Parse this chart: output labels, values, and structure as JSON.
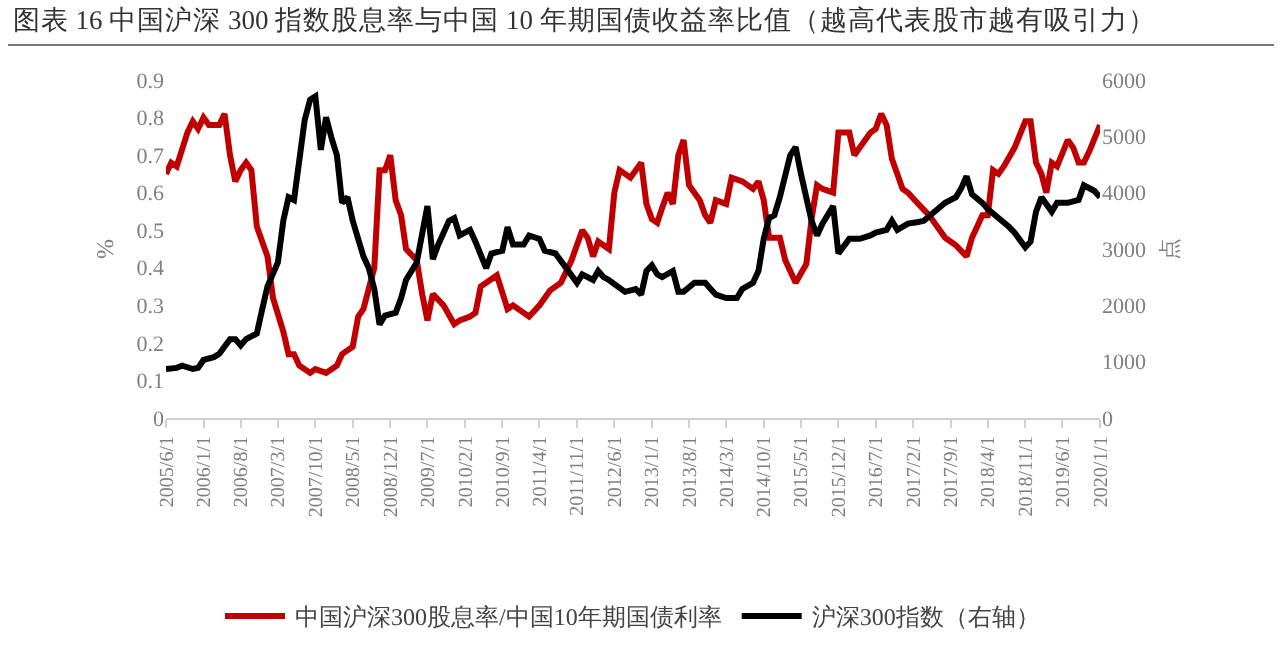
{
  "chart_data": {
    "type": "line",
    "title": "图表 16 中国沪深 300 指数股息率与中国 10 年期国债收益率比值（越高代表股市越有吸引力）",
    "ylabel": "%",
    "y2label": "点",
    "series": [
      {
        "name": "中国沪深300股息率/中国10年期国债利率",
        "color": "#c00000",
        "x": [
          "2005-06",
          "2005-07",
          "2005-08",
          "2005-10",
          "2005-11",
          "2005-12",
          "2006-01",
          "2006-02",
          "2006-04",
          "2006-05",
          "2006-06",
          "2006-07",
          "2006-08",
          "2006-09",
          "2006-10",
          "2006-11",
          "2007-01",
          "2007-02",
          "2007-04",
          "2007-05",
          "2007-06",
          "2007-07",
          "2007-09",
          "2007-10",
          "2007-12",
          "2008-02",
          "2008-03",
          "2008-05",
          "2008-06",
          "2008-07",
          "2008-09",
          "2008-10",
          "2008-11",
          "2008-12",
          "2009-01",
          "2009-02",
          "2009-03",
          "2009-05",
          "2009-06",
          "2009-07",
          "2009-08",
          "2009-10",
          "2009-12",
          "2010-01",
          "2010-03",
          "2010-04",
          "2010-05",
          "2010-08",
          "2010-10",
          "2010-11",
          "2011-02",
          "2011-04",
          "2011-06",
          "2011-08",
          "2011-10",
          "2011-12",
          "2012-01",
          "2012-02",
          "2012-03",
          "2012-05",
          "2012-06",
          "2012-07",
          "2012-09",
          "2012-11",
          "2012-12",
          "2013-01",
          "2013-02",
          "2013-03",
          "2013-04",
          "2013-05",
          "2013-06",
          "2013-07",
          "2013-08",
          "2013-10",
          "2013-11",
          "2013-12",
          "2014-01",
          "2014-03",
          "2014-04",
          "2014-06",
          "2014-08",
          "2014-09",
          "2014-10",
          "2014-11",
          "2015-01",
          "2015-02",
          "2015-04",
          "2015-06",
          "2015-07",
          "2015-08",
          "2015-09",
          "2015-11",
          "2015-12",
          "2016-02",
          "2016-03",
          "2016-04",
          "2016-06",
          "2016-07",
          "2016-08",
          "2016-09",
          "2016-10",
          "2016-12",
          "2017-01",
          "2017-03",
          "2017-05",
          "2017-06",
          "2017-08",
          "2017-10",
          "2017-12",
          "2018-01",
          "2018-03",
          "2018-04",
          "2018-05",
          "2018-06",
          "2018-07",
          "2018-09",
          "2018-11",
          "2018-12",
          "2019-01",
          "2019-02",
          "2019-03",
          "2019-04",
          "2019-05",
          "2019-07",
          "2019-08",
          "2019-09",
          "2019-10",
          "2019-11",
          "2020-01"
        ],
        "values": [
          0.65,
          0.68,
          0.67,
          0.76,
          0.79,
          0.77,
          0.8,
          0.78,
          0.78,
          0.81,
          0.7,
          0.63,
          0.66,
          0.68,
          0.66,
          0.51,
          0.43,
          0.32,
          0.23,
          0.17,
          0.17,
          0.14,
          0.12,
          0.13,
          0.12,
          0.14,
          0.17,
          0.19,
          0.27,
          0.29,
          0.4,
          0.66,
          0.66,
          0.7,
          0.58,
          0.54,
          0.45,
          0.42,
          0.33,
          0.26,
          0.33,
          0.3,
          0.25,
          0.26,
          0.27,
          0.28,
          0.35,
          0.38,
          0.29,
          0.3,
          0.27,
          0.3,
          0.34,
          0.36,
          0.42,
          0.5,
          0.48,
          0.43,
          0.47,
          0.45,
          0.6,
          0.66,
          0.64,
          0.68,
          0.57,
          0.53,
          0.52,
          0.56,
          0.6,
          0.57,
          0.7,
          0.74,
          0.62,
          0.58,
          0.54,
          0.52,
          0.58,
          0.57,
          0.64,
          0.63,
          0.61,
          0.63,
          0.58,
          0.48,
          0.48,
          0.42,
          0.36,
          0.41,
          0.53,
          0.62,
          0.61,
          0.6,
          0.76,
          0.76,
          0.7,
          0.72,
          0.76,
          0.77,
          0.81,
          0.78,
          0.69,
          0.61,
          0.6,
          0.57,
          0.54,
          0.52,
          0.48,
          0.46,
          0.43,
          0.48,
          0.54,
          0.54,
          0.66,
          0.65,
          0.67,
          0.72,
          0.79,
          0.79,
          0.68,
          0.65,
          0.6,
          0.68,
          0.67,
          0.74,
          0.72,
          0.68,
          0.68,
          0.71,
          0.78
        ]
      },
      {
        "name": "沪深300指数（右轴）",
        "color": "#000000",
        "axis": "y2",
        "x": [
          "2005-06",
          "2005-08",
          "2005-09",
          "2005-11",
          "2005-12",
          "2006-01",
          "2006-03",
          "2006-04",
          "2006-06",
          "2006-07",
          "2006-08",
          "2006-09",
          "2006-11",
          "2006-12",
          "2007-01",
          "2007-03",
          "2007-04",
          "2007-05",
          "2007-06",
          "2007-08",
          "2007-09",
          "2007-10",
          "2007-11",
          "2007-12",
          "2008-01",
          "2008-02",
          "2008-03",
          "2008-04",
          "2008-05",
          "2008-07",
          "2008-08",
          "2008-09",
          "2008-10",
          "2008-11",
          "2009-01",
          "2009-02",
          "2009-03",
          "2009-05",
          "2009-07",
          "2009-08",
          "2009-09",
          "2009-11",
          "2009-12",
          "2010-01",
          "2010-03",
          "2010-04",
          "2010-06",
          "2010-07",
          "2010-09",
          "2010-10",
          "2010-11",
          "2011-01",
          "2011-02",
          "2011-04",
          "2011-05",
          "2011-07",
          "2011-09",
          "2011-11",
          "2011-12",
          "2012-02",
          "2012-03",
          "2012-04",
          "2012-05",
          "2012-08",
          "2012-10",
          "2012-11",
          "2012-12",
          "2013-01",
          "2013-02",
          "2013-03",
          "2013-05",
          "2013-06",
          "2013-07",
          "2013-09",
          "2013-11",
          "2014-01",
          "2014-03",
          "2014-05",
          "2014-06",
          "2014-08",
          "2014-09",
          "2014-10",
          "2014-11",
          "2014-12",
          "2015-01",
          "2015-03",
          "2015-04",
          "2015-05",
          "2015-07",
          "2015-08",
          "2015-09",
          "2015-11",
          "2015-12",
          "2016-02",
          "2016-04",
          "2016-06",
          "2016-07",
          "2016-09",
          "2016-10",
          "2016-11",
          "2017-01",
          "2017-03",
          "2017-04",
          "2017-06",
          "2017-08",
          "2017-10",
          "2017-11",
          "2017-12",
          "2018-01",
          "2018-03",
          "2018-04",
          "2018-06",
          "2018-08",
          "2018-09",
          "2018-11",
          "2018-12",
          "2019-01",
          "2019-02",
          "2019-04",
          "2019-05",
          "2019-07",
          "2019-09",
          "2019-10",
          "2019-12",
          "2020-01"
        ],
        "values": [
          870,
          890,
          930,
          870,
          890,
          1030,
          1080,
          1140,
          1400,
          1400,
          1290,
          1400,
          1500,
          1920,
          2340,
          2760,
          3500,
          3920,
          3870,
          5290,
          5650,
          5710,
          4760,
          5340,
          4970,
          4660,
          3820,
          3920,
          3500,
          2870,
          2660,
          2290,
          1660,
          1820,
          1870,
          2130,
          2450,
          2760,
          3760,
          2820,
          3080,
          3500,
          3550,
          3240,
          3340,
          3130,
          2660,
          2920,
          2970,
          3390,
          3080,
          3080,
          3240,
          3180,
          2970,
          2920,
          2660,
          2400,
          2550,
          2450,
          2610,
          2500,
          2450,
          2240,
          2290,
          2190,
          2610,
          2710,
          2550,
          2500,
          2610,
          2240,
          2240,
          2400,
          2400,
          2190,
          2130,
          2130,
          2290,
          2400,
          2610,
          3180,
          3550,
          3600,
          3920,
          4660,
          4810,
          4340,
          3500,
          3240,
          3450,
          3760,
          2920,
          3180,
          3180,
          3240,
          3290,
          3340,
          3500,
          3340,
          3450,
          3480,
          3500,
          3660,
          3820,
          3920,
          4080,
          4290,
          3970,
          3820,
          3710,
          3550,
          3390,
          3290,
          3030,
          3130,
          3660,
          3920,
          3660,
          3820,
          3820,
          3870,
          4130,
          4030,
          3920
        ]
      }
    ],
    "xlim": [
      "2005-06-01",
      "2020-01-01"
    ],
    "xticks": [
      {
        "value": "2005-06-01",
        "label": "2005/6/1"
      },
      {
        "value": "2006-01-01",
        "label": "2006/1/1"
      },
      {
        "value": "2006-08-01",
        "label": "2006/8/1"
      },
      {
        "value": "2007-03-01",
        "label": "2007/3/1"
      },
      {
        "value": "2007-10-01",
        "label": "2007/10/1"
      },
      {
        "value": "2008-05-01",
        "label": "2008/5/1"
      },
      {
        "value": "2008-12-01",
        "label": "2008/12/1"
      },
      {
        "value": "2009-07-01",
        "label": "2009/7/1"
      },
      {
        "value": "2010-02-01",
        "label": "2010/2/1"
      },
      {
        "value": "2010-09-01",
        "label": "2010/9/1"
      },
      {
        "value": "2011-04-01",
        "label": "2011/4/1"
      },
      {
        "value": "2011-11-01",
        "label": "2011/11/1"
      },
      {
        "value": "2012-06-01",
        "label": "2012/6/1"
      },
      {
        "value": "2013-01-01",
        "label": "2013/1/1"
      },
      {
        "value": "2013-08-01",
        "label": "2013/8/1"
      },
      {
        "value": "2014-03-01",
        "label": "2014/3/1"
      },
      {
        "value": "2014-10-01",
        "label": "2014/10/1"
      },
      {
        "value": "2015-05-01",
        "label": "2015/5/1"
      },
      {
        "value": "2015-12-01",
        "label": "2015/12/1"
      },
      {
        "value": "2016-07-01",
        "label": "2016/7/1"
      },
      {
        "value": "2017-02-01",
        "label": "2017/2/1"
      },
      {
        "value": "2017-09-01",
        "label": "2017/9/1"
      },
      {
        "value": "2018-04-01",
        "label": "2018/4/1"
      },
      {
        "value": "2018-11-01",
        "label": "2018/11/1"
      },
      {
        "value": "2019-06-01",
        "label": "2019/6/1"
      },
      {
        "value": "2020-01-01",
        "label": "2020/1/1"
      }
    ],
    "ylim": [
      0,
      0.9
    ],
    "yticks": [
      0,
      0.1,
      0.2,
      0.3,
      0.4,
      0.5,
      0.6,
      0.7,
      0.8,
      0.9
    ],
    "y2lim": [
      0,
      6000
    ],
    "y2ticks": [
      0,
      1000,
      2000,
      3000,
      4000,
      5000,
      6000
    ],
    "grid": false,
    "legend": "bottom",
    "marker": "none",
    "line_style": "solid"
  }
}
